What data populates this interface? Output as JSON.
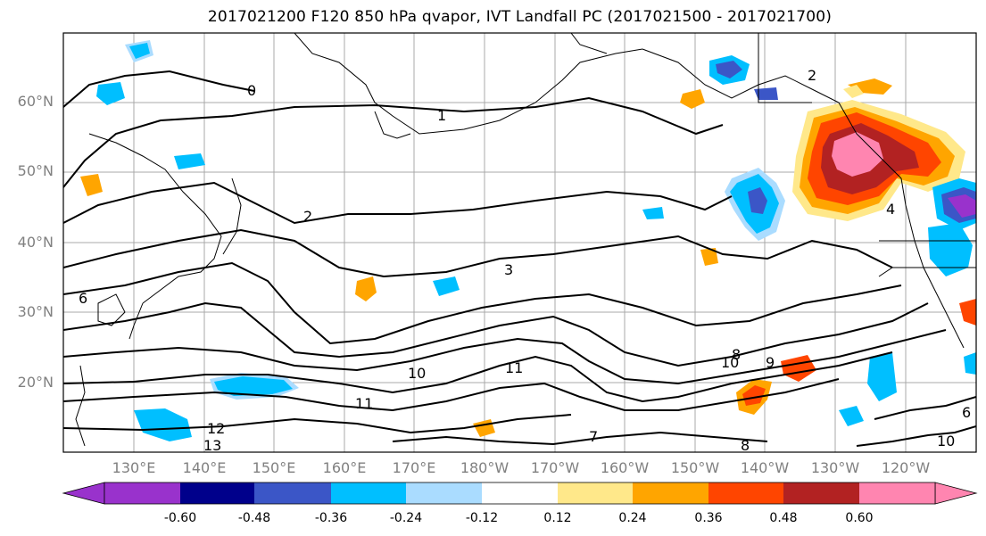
{
  "title": "2017021200 F120 850 hPa qvapor, IVT Landfall PC (2017021500 - 2017021700)",
  "lat_labels": [
    "60°N",
    "50°N",
    "40°N",
    "30°N",
    "20°N"
  ],
  "lon_labels": [
    "130°E",
    "140°E",
    "150°E",
    "160°E",
    "170°E",
    "180°W",
    "170°W",
    "160°W",
    "150°W",
    "140°W",
    "130°W",
    "120°W"
  ],
  "colorbar": {
    "colors": [
      "#9932cc",
      "#00008b",
      "#3b56c7",
      "#00bfff",
      "#aadcff",
      "#ffffff",
      "#ffe88a",
      "#ffa500",
      "#ff4500",
      "#b22222",
      "#ff85b0"
    ],
    "ticks": [
      "-0.60",
      "-0.48",
      "-0.36",
      "-0.24",
      "-0.12",
      "0.12",
      "0.24",
      "0.36",
      "0.48",
      "0.60"
    ]
  },
  "contour_labels": [
    "0",
    "1",
    "2",
    "2",
    "3",
    "4",
    "6",
    "6",
    "7",
    "8",
    "8",
    "9",
    "10",
    "10",
    "10",
    "11",
    "11",
    "12",
    "13"
  ]
}
